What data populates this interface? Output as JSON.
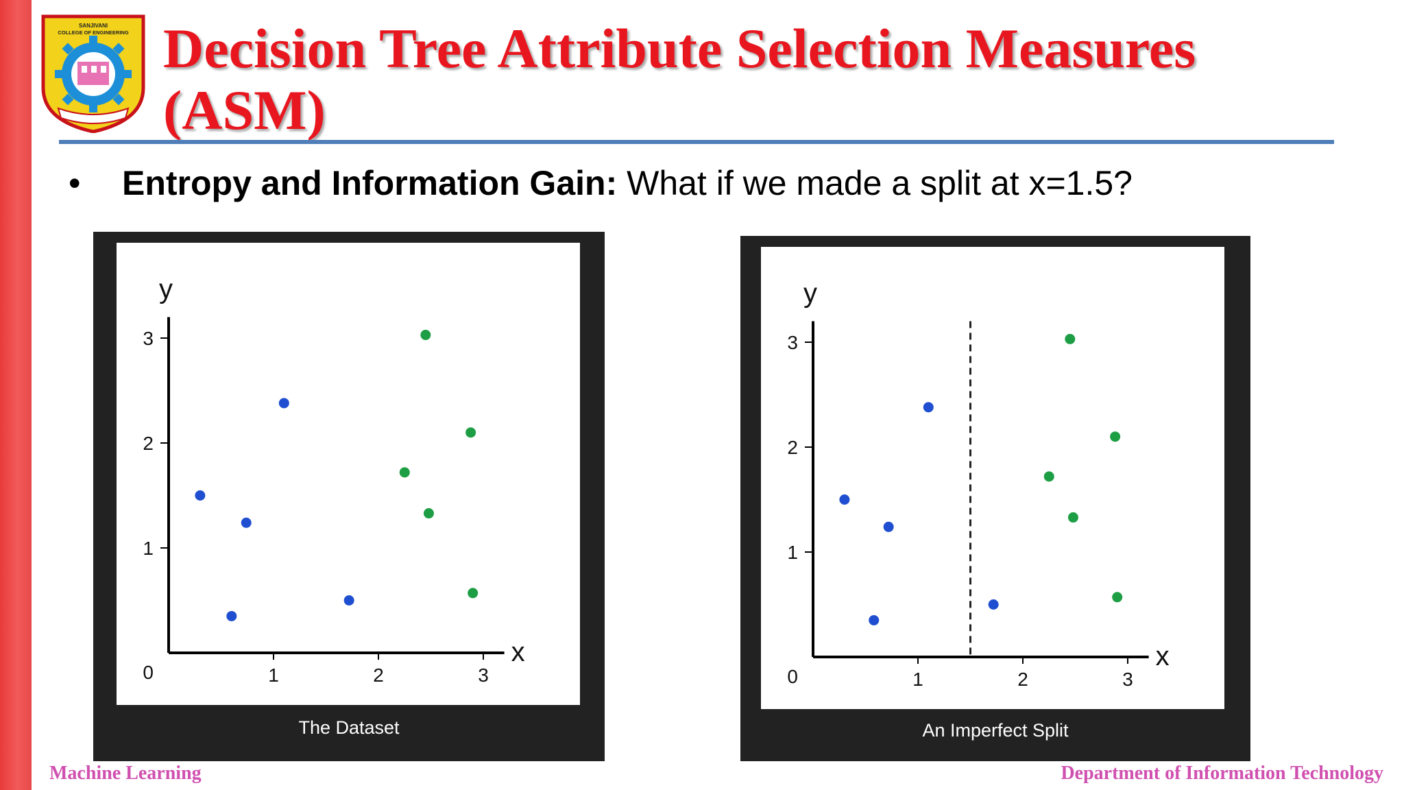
{
  "slide": {
    "title": "Decision Tree Attribute Selection Measures (ASM)",
    "bullet_label": "Entropy and Information Gain:",
    "bullet_text": "What if we made a split at x=1.5?",
    "logo_text": "SANJIVANI COLLEGE OF ENGINEERING",
    "footer_left": "Machine Learning",
    "footer_right": "Department of Information Technology"
  },
  "colors": {
    "class_a": "#1f4fd0",
    "class_b": "#1e9e44",
    "title": "#e8161e",
    "footer": "#d050b0",
    "rule": "#4f7fb8"
  },
  "chart_data": [
    {
      "type": "scatter",
      "caption": "The Dataset",
      "xlabel": "x",
      "ylabel": "y",
      "origin_label": "0",
      "xticks": [
        "1",
        "2",
        "3"
      ],
      "yticks": [
        "1",
        "2",
        "3"
      ],
      "xlim": [
        0,
        3.2
      ],
      "ylim": [
        0,
        3.2
      ],
      "series": [
        {
          "color": "#1f4fd0",
          "points": [
            [
              0.3,
              1.5
            ],
            [
              0.6,
              0.35
            ],
            [
              0.74,
              1.24
            ],
            [
              1.1,
              2.38
            ],
            [
              1.72,
              0.5
            ]
          ]
        },
        {
          "color": "#1e9e44",
          "points": [
            [
              2.45,
              3.03
            ],
            [
              2.88,
              2.1
            ],
            [
              2.25,
              1.72
            ],
            [
              2.48,
              1.33
            ],
            [
              2.9,
              0.57
            ]
          ]
        }
      ]
    },
    {
      "type": "scatter",
      "caption": "An Imperfect Split",
      "xlabel": "x",
      "ylabel": "y",
      "origin_label": "0",
      "xticks": [
        "1",
        "2",
        "3"
      ],
      "yticks": [
        "1",
        "2",
        "3"
      ],
      "xlim": [
        0,
        3.2
      ],
      "ylim": [
        0,
        3.2
      ],
      "split_x": 1.5,
      "series": [
        {
          "color": "#1f4fd0",
          "points": [
            [
              0.3,
              1.5
            ],
            [
              0.58,
              0.35
            ],
            [
              0.72,
              1.24
            ],
            [
              1.1,
              2.38
            ],
            [
              1.72,
              0.5
            ]
          ]
        },
        {
          "color": "#1e9e44",
          "points": [
            [
              2.45,
              3.03
            ],
            [
              2.88,
              2.1
            ],
            [
              2.25,
              1.72
            ],
            [
              2.48,
              1.33
            ],
            [
              2.9,
              0.57
            ]
          ]
        }
      ]
    }
  ]
}
